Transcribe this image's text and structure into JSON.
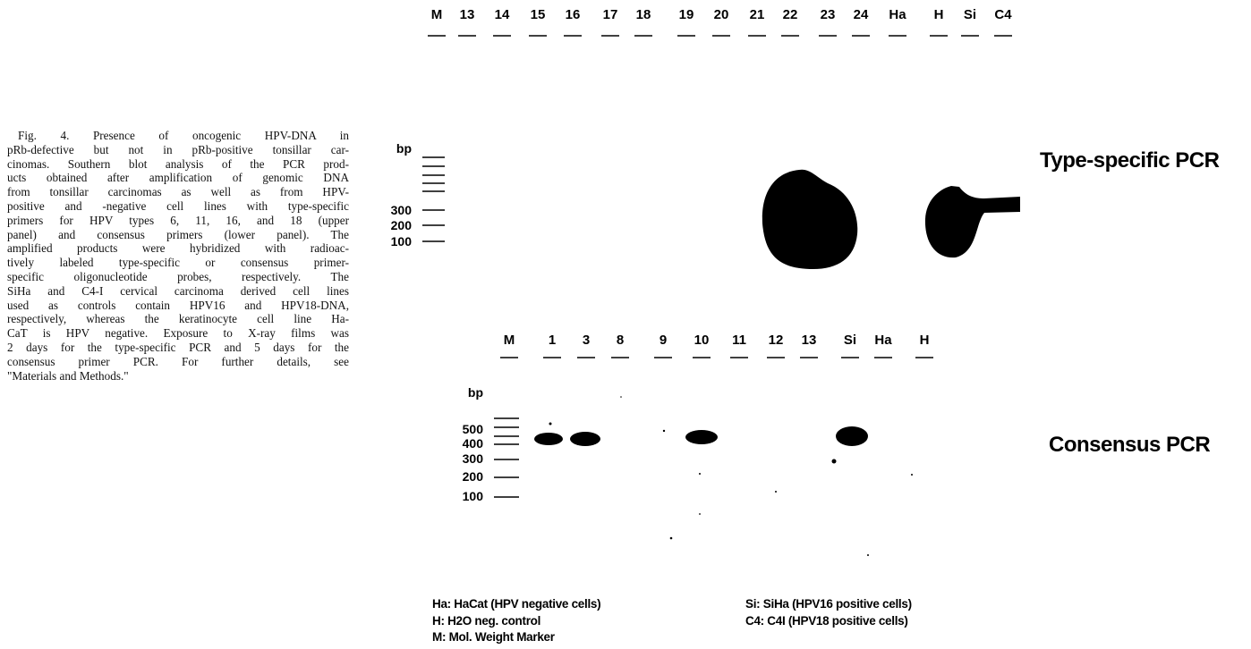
{
  "caption": {
    "lines": [
      "Fig. 4. Presence of oncogenic HPV-DNA in",
      "pRb-defective but not in pRb-positive tonsillar car-",
      "cinomas. Southern blot analysis of the PCR prod-",
      "ucts obtained after amplification of genomic DNA",
      "from tonsillar carcinomas as well as from HPV-",
      "positive and -negative cell lines with type-specific",
      "primers for HPV types 6, 11, 16, and 18 (upper",
      "panel) and consensus primers (lower panel). The",
      "amplified products were hybridized with radioac-",
      "tively labeled type-specific or consensus primer-",
      "specific oligonucleotide probes, respectively. The",
      "SiHa and C4-I cervical carcinoma derived cell lines",
      "used as controls contain HPV16 and HPV18-DNA,",
      "respectively, whereas the keratinocyte cell line Ha-",
      "CaT is HPV negative. Exposure to X-ray films was",
      "2 days for the type-specific PCR and 5 days for the",
      "consensus primer PCR. For further details, see",
      "\"Materials and Methods.\""
    ]
  },
  "upper_panel": {
    "title": "Type-specific PCR",
    "lanes": [
      "M",
      "13",
      "14",
      "15",
      "16",
      "17",
      "18",
      "19",
      "20",
      "21",
      "22",
      "23",
      "24",
      "Ha",
      "H",
      "Si",
      "C4"
    ],
    "bp_label": "bp",
    "markers": [
      "300",
      "200",
      "100"
    ]
  },
  "lower_panel": {
    "title": "Consensus PCR",
    "lanes": [
      "M",
      "1",
      "3",
      "8",
      "9",
      "10",
      "11",
      "12",
      "13",
      "Si",
      "Ha",
      "H"
    ],
    "bp_label": "bp",
    "markers": [
      "500",
      "400",
      "300",
      "200",
      "100"
    ]
  },
  "legend": {
    "left": [
      "Ha: HaCat (HPV negative cells)",
      "H: H2O neg. control",
      "M: Mol. Weight Marker"
    ],
    "right": [
      "Si: SiHa (HPV16 positive cells)",
      "C4: C4I (HPV18 positive cells)"
    ]
  }
}
